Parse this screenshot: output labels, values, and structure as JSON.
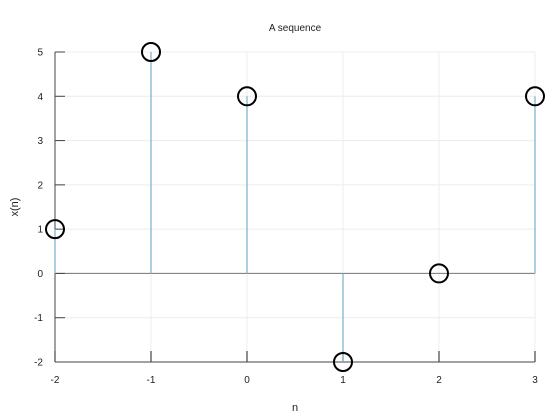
{
  "chart_data": {
    "type": "stem",
    "title": "A sequence",
    "xlabel": "n",
    "ylabel": "x(n)",
    "x": [
      -2,
      -1,
      0,
      1,
      2,
      3
    ],
    "values": [
      1,
      5,
      4,
      -2,
      0,
      4
    ],
    "xlim": [
      -2,
      3
    ],
    "ylim": [
      -2,
      5
    ],
    "xticks": [
      "-2",
      "-1",
      "0",
      "1",
      "2",
      "3"
    ],
    "yticks": [
      "-2",
      "-1",
      "0",
      "1",
      "2",
      "3",
      "4",
      "5"
    ],
    "grid": true,
    "colors": {
      "stem": "#7fb6d3",
      "marker": "#000000",
      "grid": "#ececec",
      "axis": "#444444",
      "baseline": "#777777"
    }
  }
}
